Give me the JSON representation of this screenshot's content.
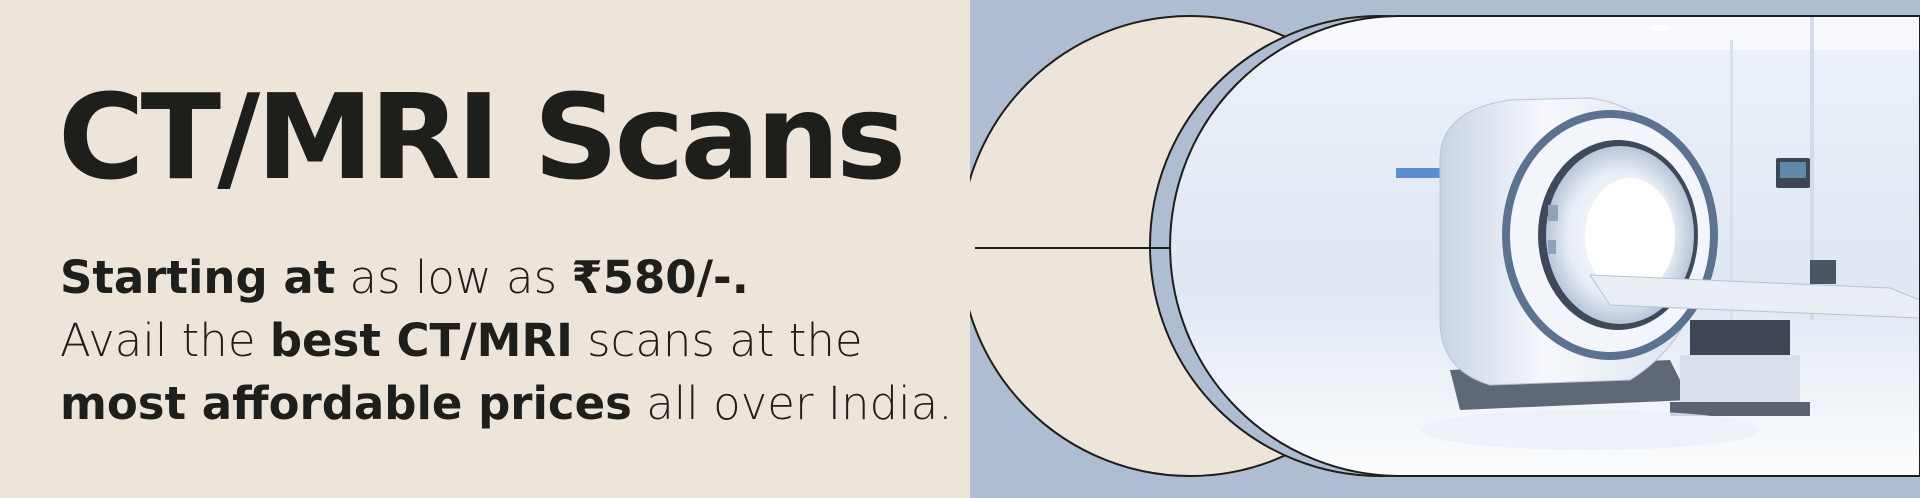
{
  "banner": {
    "title": "CT/MRI Scans",
    "line1": {
      "strong": "Starting at",
      "normal": "as low as",
      "price": "₹580/-."
    },
    "line2": {
      "normal_a": "Avail the",
      "strong": "best CT/MRI",
      "normal_b": "scans at the"
    },
    "line3": {
      "strong": "most affordable prices",
      "normal": "all over India."
    }
  },
  "colors": {
    "cream": "#ede5da",
    "blue": "#aebdd2",
    "ink": "#1e1e1b"
  },
  "illustration": {
    "subject": "mri-scanner-photo"
  }
}
